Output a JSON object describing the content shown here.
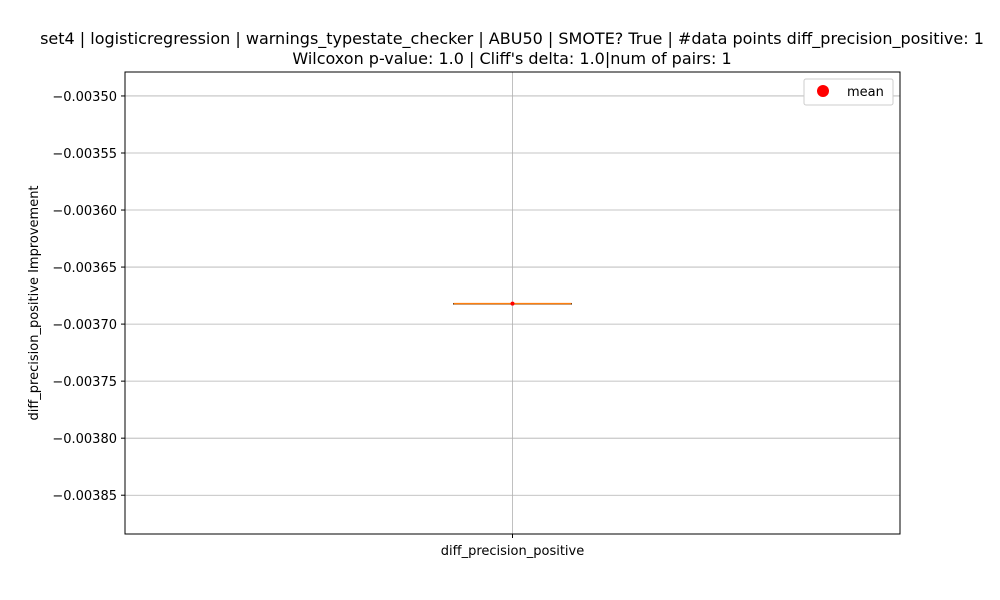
{
  "chart_data": {
    "type": "box",
    "title_line1": "set4 | logisticregression | warnings_typestate_checker | ABU50 | SMOTE? True | #data points diff_precision_positive: 1",
    "title_line2": "Wilcoxon p-value: 1.0 | Cliff's delta: 1.0|num of pairs: 1",
    "xlabel": "",
    "ylabel": "diff_precision_positive Improvement",
    "categories": [
      "diff_precision_positive"
    ],
    "ylim": [
      -0.003884,
      -0.003479
    ],
    "yticks": [
      -0.0035,
      -0.00355,
      -0.0036,
      -0.00365,
      -0.0037,
      -0.00375,
      -0.0038,
      -0.00385
    ],
    "ytick_labels": [
      "−0.00350",
      "−0.00355",
      "−0.00360",
      "−0.00365",
      "−0.00370",
      "−0.00375",
      "−0.00380",
      "−0.00385"
    ],
    "boxes": [
      {
        "category": "diff_precision_positive",
        "min": -0.003682,
        "q1": -0.003682,
        "median": -0.003682,
        "q3": -0.003682,
        "max": -0.003682,
        "mean": -0.003682
      }
    ],
    "grid": true,
    "legend": {
      "position": "top-right",
      "entries": [
        {
          "label": "mean",
          "color": "#ff0000",
          "marker": "circle"
        }
      ]
    },
    "colors": {
      "median": "#ff7f0e",
      "mean": "#ff0000",
      "box": "#000000",
      "grid": "#b0b0b0"
    }
  }
}
